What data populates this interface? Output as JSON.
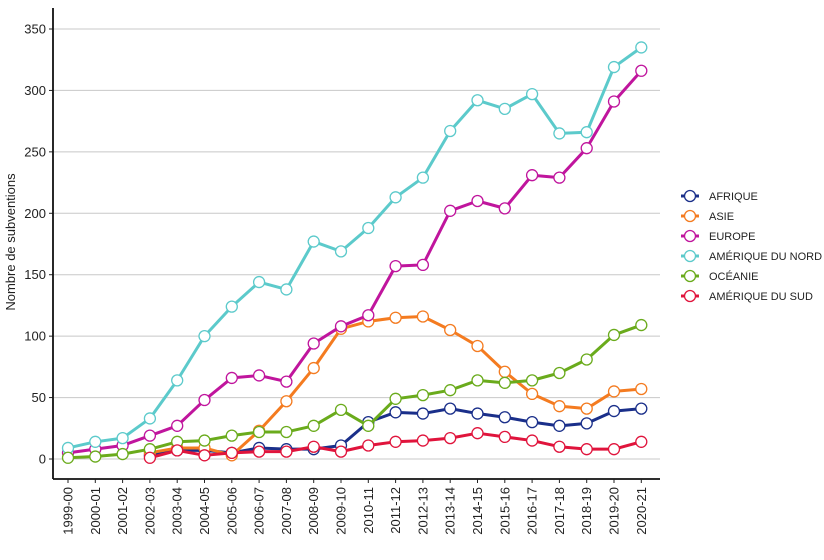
{
  "chart_data": {
    "type": "line",
    "title": "",
    "xlabel": "",
    "ylabel": "Nombre de subventions",
    "ylim": [
      0,
      370
    ],
    "yticks": [
      0,
      50,
      100,
      150,
      200,
      250,
      300,
      350
    ],
    "grid": "horizontal",
    "legend_position": "right",
    "categories": [
      "1999-00",
      "2000-01",
      "2001-02",
      "2002-03",
      "2003-04",
      "2004-05",
      "2005-06",
      "2006-07",
      "2007-08",
      "2008-09",
      "2009-10",
      "2010-11",
      "2011-12",
      "2012-13",
      "2013-14",
      "2014-15",
      "2015-16",
      "2016-17",
      "2017-18",
      "2018-19",
      "2019-20",
      "2020-21"
    ],
    "series": [
      {
        "name": "AFRIQUE",
        "color": "#1a2f8a",
        "values": [
          null,
          null,
          null,
          3,
          7,
          7,
          5,
          9,
          8,
          8,
          11,
          30,
          38,
          37,
          41,
          37,
          34,
          30,
          27,
          29,
          39,
          41
        ]
      },
      {
        "name": "ASIE",
        "color": "#f47b20",
        "values": [
          null,
          null,
          null,
          5,
          9,
          9,
          3,
          23,
          47,
          74,
          106,
          112,
          115,
          116,
          105,
          92,
          71,
          53,
          43,
          41,
          55,
          57
        ]
      },
      {
        "name": "EUROPE",
        "color": "#c0159d",
        "values": [
          5,
          8,
          11,
          19,
          27,
          48,
          66,
          68,
          63,
          94,
          108,
          117,
          157,
          158,
          202,
          210,
          204,
          231,
          229,
          253,
          291,
          316
        ]
      },
      {
        "name": "AMÉRIQUE DU NORD",
        "color": "#5ccacb",
        "values": [
          9,
          14,
          17,
          33,
          64,
          100,
          124,
          144,
          138,
          177,
          169,
          188,
          213,
          229,
          267,
          292,
          285,
          297,
          265,
          266,
          319,
          335
        ]
      },
      {
        "name": "OCÉANIE",
        "color": "#6aab1c",
        "values": [
          1,
          2,
          4,
          8,
          14,
          15,
          19,
          22,
          22,
          27,
          40,
          27,
          49,
          52,
          56,
          64,
          62,
          64,
          70,
          81,
          101,
          109
        ]
      },
      {
        "name": "AMÉRIQUE DU SUD",
        "color": "#e0143c",
        "values": [
          null,
          null,
          null,
          1,
          7,
          3,
          5,
          6,
          6,
          10,
          6,
          11,
          14,
          15,
          17,
          21,
          18,
          15,
          10,
          8,
          8,
          14
        ]
      }
    ]
  }
}
